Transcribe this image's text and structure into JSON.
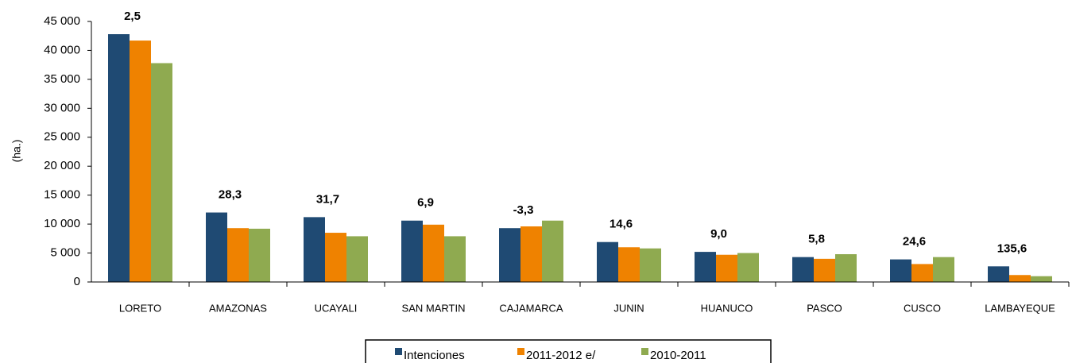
{
  "chart_data": {
    "type": "bar",
    "y_label": "(ha.)",
    "categories": [
      "LORETO",
      "AMAZONAS",
      "UCAYALI",
      "SAN MARTIN",
      "CAJAMARCA",
      "JUNIN",
      "HUANUCO",
      "PASCO",
      "CUSCO",
      "LAMBAYEQUE"
    ],
    "series": [
      {
        "name": "Intenciones",
        "color": "#1f4a73",
        "values": [
          42800,
          12000,
          11200,
          10600,
          9300,
          6900,
          5200,
          4300,
          3900,
          2700
        ]
      },
      {
        "name": "2011-2012 e/",
        "color": "#ef8200",
        "values": [
          41700,
          9300,
          8500,
          9900,
          9600,
          6000,
          4700,
          4000,
          3100,
          1200
        ]
      },
      {
        "name": "2010-2011",
        "color": "#8faa50",
        "values": [
          37800,
          9200,
          7900,
          7900,
          10600,
          5800,
          5000,
          4800,
          4300,
          1000
        ]
      }
    ],
    "annotations": [
      "2,5",
      "28,3",
      "31,7",
      "6,9",
      "-3,3",
      "14,6",
      "9,0",
      "5,8",
      "24,6",
      "135,6"
    ],
    "ylim": [
      0,
      45000
    ],
    "yticks": [
      0,
      {
        "value": 5000,
        "label": "5 000"
      },
      {
        "value": 10000,
        "label": "10 000"
      },
      {
        "value": 15000,
        "label": "15 000"
      },
      {
        "value": 20000,
        "label": "20 000"
      },
      {
        "value": 25000,
        "label": "25 000"
      },
      {
        "value": 30000,
        "label": "30 000"
      },
      {
        "value": 35000,
        "label": "35 000"
      },
      {
        "value": 40000,
        "label": "40 000"
      },
      {
        "value": 45000,
        "label": "45 000"
      }
    ],
    "legend": "bottom"
  }
}
